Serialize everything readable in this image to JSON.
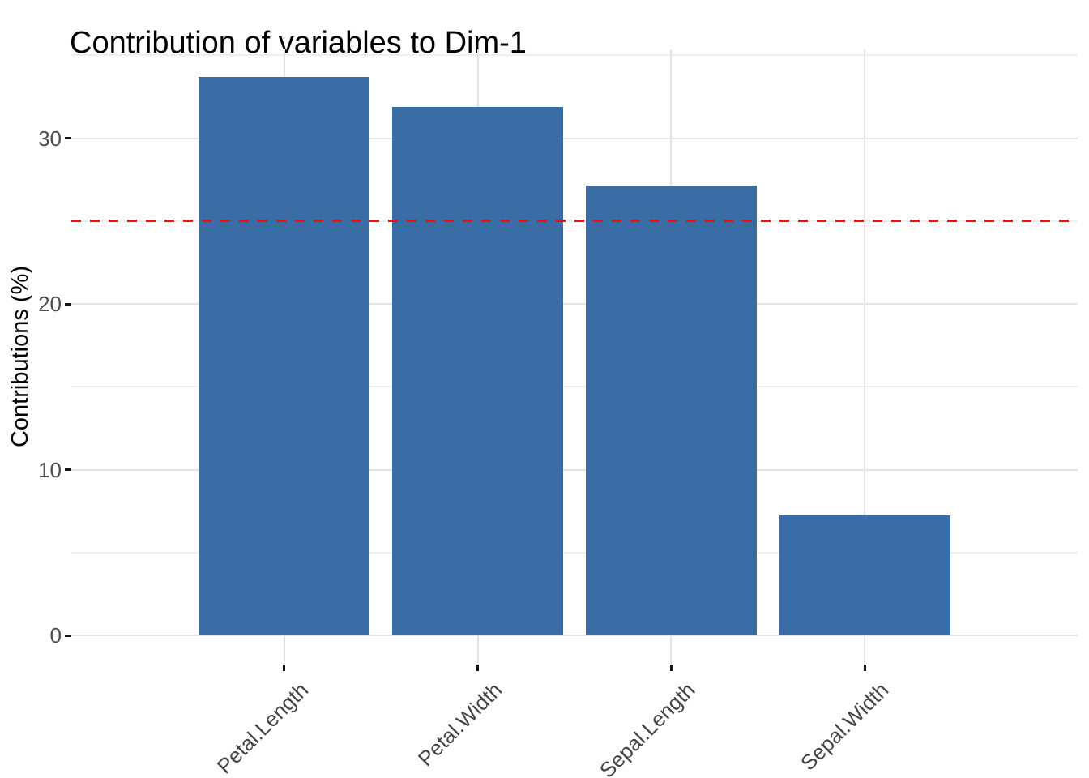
{
  "title": "Contribution of variables to Dim-1",
  "chart_data": {
    "type": "bar",
    "title": "Contribution of variables to Dim-1",
    "categories": [
      "Petal.Length",
      "Petal.Width",
      "Sepal.Length",
      "Sepal.Width"
    ],
    "values": [
      33.69,
      31.91,
      27.15,
      7.25
    ],
    "xlabel": "",
    "ylabel": "Contributions (%)",
    "ylim": [
      0,
      35.4
    ],
    "yticks": [
      0,
      10,
      20,
      30
    ],
    "ytick_labels": [
      "0",
      "10",
      "20",
      "30"
    ],
    "minor_gridlines": [
      5,
      15,
      25,
      35
    ],
    "grid": true,
    "legend_position": "none",
    "reference_line": {
      "value": 25,
      "style": "dashed",
      "color": "#f20d0d"
    },
    "bar_color": "#3a6da6",
    "background": "#ffffff",
    "gridline_color": "#e4e4e4",
    "tick_label_color": "#4d4d4d"
  }
}
